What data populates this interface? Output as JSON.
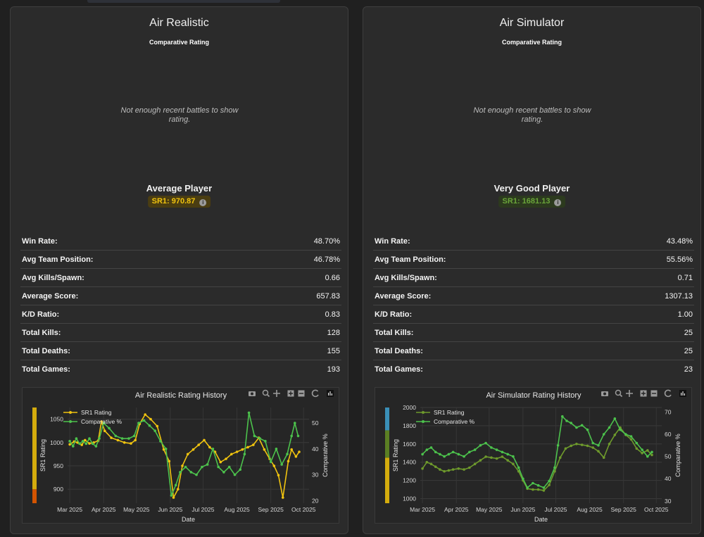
{
  "panels": [
    {
      "title": "Air Realistic",
      "subtitle": "Comparative Rating",
      "empty_message": "Not enough recent battles to show rating.",
      "player_class": "Average Player",
      "sr_badge": "SR1: 970.87",
      "badge_color": "#f1c40f",
      "stats": [
        {
          "label": "Win Rate:",
          "value": "48.70%"
        },
        {
          "label": "Avg Team Position:",
          "value": "46.78%"
        },
        {
          "label": "Avg Kills/Spawn:",
          "value": "0.66"
        },
        {
          "label": "Average Score:",
          "value": "657.83"
        },
        {
          "label": "K/D Ratio:",
          "value": "0.83"
        },
        {
          "label": "Total Kills:",
          "value": "128"
        },
        {
          "label": "Total Deaths:",
          "value": "155"
        },
        {
          "label": "Total Games:",
          "value": "193"
        }
      ]
    },
    {
      "title": "Air Simulator",
      "subtitle": "Comparative Rating",
      "empty_message": "Not enough recent battles to show rating.",
      "player_class": "Very Good Player",
      "sr_badge": "SR1: 1681.13",
      "badge_color": "#6aa53a",
      "stats": [
        {
          "label": "Win Rate:",
          "value": "43.48%"
        },
        {
          "label": "Avg Team Position:",
          "value": "55.56%"
        },
        {
          "label": "Avg Kills/Spawn:",
          "value": "0.71"
        },
        {
          "label": "Average Score:",
          "value": "1307.13"
        },
        {
          "label": "K/D Ratio:",
          "value": "1.00"
        },
        {
          "label": "Total Kills:",
          "value": "25"
        },
        {
          "label": "Total Deaths:",
          "value": "25"
        },
        {
          "label": "Total Games:",
          "value": "23"
        }
      ]
    }
  ],
  "chart_data": [
    {
      "type": "line",
      "title": "Air Realistic Rating History",
      "xlabel": "Date",
      "ylabel": "SR1 Rating",
      "y2label": "Comparative %",
      "x_ticks": [
        "Mar 2025",
        "Apr 2025",
        "May 2025",
        "Jun 2025",
        "Jul 2025",
        "Aug 2025",
        "Sep 2025",
        "Oct 2025"
      ],
      "xlim": [
        "2025-02-27",
        "2025-10-06"
      ],
      "ylim": [
        870,
        1075
      ],
      "y_ticks": [
        900,
        950,
        1000,
        1050
      ],
      "y2lim": [
        19,
        56
      ],
      "y2_ticks": [
        20,
        30,
        40,
        50
      ],
      "legend": "top-left",
      "series": [
        {
          "name": "SR1 Rating",
          "axis": "y",
          "color": "#f1c40f",
          "x": [
            "2025-03-01",
            "2025-03-05",
            "2025-03-08",
            "2025-03-12",
            "2025-03-15",
            "2025-03-19",
            "2025-03-23",
            "2025-03-27",
            "2025-03-30",
            "2025-04-02",
            "2025-04-08",
            "2025-04-14",
            "2025-04-20",
            "2025-04-26",
            "2025-04-30",
            "2025-05-04",
            "2025-05-09",
            "2025-05-14",
            "2025-05-20",
            "2025-05-26",
            "2025-05-31",
            "2025-06-04",
            "2025-06-08",
            "2025-06-12",
            "2025-06-17",
            "2025-06-22",
            "2025-06-27",
            "2025-07-02",
            "2025-07-07",
            "2025-07-12",
            "2025-07-17",
            "2025-07-22",
            "2025-07-27",
            "2025-08-01",
            "2025-08-06",
            "2025-08-11",
            "2025-08-16",
            "2025-08-21",
            "2025-08-26",
            "2025-08-31",
            "2025-09-04",
            "2025-09-08",
            "2025-09-12",
            "2025-09-17",
            "2025-09-20",
            "2025-09-24",
            "2025-09-27"
          ],
          "values": [
            996,
            1002,
            1000,
            995,
            1005,
            998,
            1000,
            1004,
            1045,
            1025,
            1010,
            1005,
            1000,
            998,
            1005,
            1040,
            1060,
            1050,
            1035,
            985,
            960,
            882,
            900,
            950,
            975,
            985,
            995,
            1005,
            990,
            980,
            958,
            965,
            975,
            980,
            985,
            990,
            995,
            1010,
            985,
            965,
            950,
            930,
            882,
            960,
            985,
            970,
            980
          ]
        },
        {
          "name": "Comparative %",
          "axis": "y2",
          "color": "#4cc24c",
          "x": [
            "2025-03-01",
            "2025-03-04",
            "2025-03-07",
            "2025-03-10",
            "2025-03-13",
            "2025-03-16",
            "2025-03-19",
            "2025-03-22",
            "2025-03-25",
            "2025-03-28",
            "2025-04-01",
            "2025-04-06",
            "2025-04-12",
            "2025-04-18",
            "2025-04-24",
            "2025-04-29",
            "2025-05-03",
            "2025-05-08",
            "2025-05-13",
            "2025-05-18",
            "2025-05-23",
            "2025-05-28",
            "2025-06-02",
            "2025-06-06",
            "2025-06-10",
            "2025-06-15",
            "2025-06-20",
            "2025-06-25",
            "2025-06-30",
            "2025-07-05",
            "2025-07-10",
            "2025-07-15",
            "2025-07-20",
            "2025-07-25",
            "2025-07-30",
            "2025-08-04",
            "2025-08-08",
            "2025-08-12",
            "2025-08-17",
            "2025-08-22",
            "2025-08-27",
            "2025-09-01",
            "2025-09-06",
            "2025-09-11",
            "2025-09-16",
            "2025-09-20",
            "2025-09-23",
            "2025-09-26"
          ],
          "values": [
            43,
            41,
            44,
            42,
            43,
            42,
            44,
            42,
            41,
            44,
            50,
            48,
            45,
            44,
            44,
            45,
            50,
            51,
            49,
            47,
            43,
            40,
            22,
            26,
            31,
            33,
            31,
            30,
            33,
            34,
            40,
            33,
            31,
            33,
            30,
            32,
            38,
            54,
            45,
            44,
            43,
            35,
            40,
            34,
            38,
            45,
            50,
            45
          ]
        }
      ]
    },
    {
      "type": "line",
      "title": "Air Simulator Rating History",
      "xlabel": "Date",
      "ylabel": "SR1 Rating",
      "y2label": "Comparative %",
      "x_ticks": [
        "Mar 2025",
        "Apr 2025",
        "May 2025",
        "Jun 2025",
        "Jul 2025",
        "Aug 2025",
        "Sep 2025",
        "Oct 2025"
      ],
      "xlim": [
        "2025-02-27",
        "2025-10-06"
      ],
      "ylim": [
        950,
        2000
      ],
      "y_ticks": [
        1000,
        1200,
        1400,
        1600,
        1800,
        2000
      ],
      "y2lim": [
        29,
        72
      ],
      "y2_ticks": [
        30,
        40,
        50,
        60,
        70
      ],
      "legend": "top-left",
      "series": [
        {
          "name": "SR1 Rating",
          "axis": "y",
          "color": "#6e9a2c",
          "x": [
            "2025-03-01",
            "2025-03-05",
            "2025-03-09",
            "2025-03-13",
            "2025-03-17",
            "2025-03-21",
            "2025-03-25",
            "2025-03-29",
            "2025-04-03",
            "2025-04-08",
            "2025-04-13",
            "2025-04-18",
            "2025-04-23",
            "2025-04-28",
            "2025-05-03",
            "2025-05-08",
            "2025-05-13",
            "2025-05-18",
            "2025-05-23",
            "2025-05-28",
            "2025-06-01",
            "2025-06-05",
            "2025-06-10",
            "2025-06-15",
            "2025-06-20",
            "2025-06-25",
            "2025-06-30",
            "2025-07-05",
            "2025-07-10",
            "2025-07-15",
            "2025-07-20",
            "2025-07-25",
            "2025-07-30",
            "2025-08-04",
            "2025-08-09",
            "2025-08-14",
            "2025-08-19",
            "2025-08-24",
            "2025-08-29",
            "2025-09-03",
            "2025-09-08",
            "2025-09-13",
            "2025-09-18",
            "2025-09-23",
            "2025-09-27"
          ],
          "values": [
            1330,
            1400,
            1380,
            1350,
            1320,
            1300,
            1310,
            1320,
            1330,
            1320,
            1340,
            1380,
            1420,
            1460,
            1450,
            1440,
            1460,
            1420,
            1380,
            1300,
            1200,
            1110,
            1100,
            1100,
            1090,
            1150,
            1300,
            1450,
            1550,
            1580,
            1600,
            1590,
            1580,
            1560,
            1520,
            1450,
            1600,
            1700,
            1780,
            1700,
            1650,
            1550,
            1500,
            1530,
            1480
          ]
        },
        {
          "name": "Comparative %",
          "axis": "y2",
          "color": "#4cc24c",
          "x": [
            "2025-03-01",
            "2025-03-05",
            "2025-03-09",
            "2025-03-13",
            "2025-03-17",
            "2025-03-21",
            "2025-03-25",
            "2025-03-29",
            "2025-04-03",
            "2025-04-08",
            "2025-04-13",
            "2025-04-18",
            "2025-04-23",
            "2025-04-28",
            "2025-05-03",
            "2025-05-08",
            "2025-05-13",
            "2025-05-18",
            "2025-05-23",
            "2025-05-28",
            "2025-06-01",
            "2025-06-05",
            "2025-06-10",
            "2025-06-15",
            "2025-06-20",
            "2025-06-25",
            "2025-06-30",
            "2025-07-03",
            "2025-07-07",
            "2025-07-11",
            "2025-07-15",
            "2025-07-20",
            "2025-07-25",
            "2025-07-30",
            "2025-08-04",
            "2025-08-09",
            "2025-08-14",
            "2025-08-19",
            "2025-08-24",
            "2025-08-29",
            "2025-09-03",
            "2025-09-08",
            "2025-09-13",
            "2025-09-18",
            "2025-09-23",
            "2025-09-27"
          ],
          "values": [
            51,
            53,
            54,
            52,
            51,
            50,
            51,
            52,
            51,
            50,
            52,
            53,
            55,
            56,
            54,
            53,
            52,
            51,
            50,
            45,
            40,
            36,
            38,
            37,
            36,
            39,
            45,
            55,
            68,
            66,
            65,
            63,
            64,
            62,
            56,
            55,
            60,
            63,
            67,
            62,
            60,
            59,
            56,
            53,
            50,
            52
          ]
        }
      ]
    }
  ]
}
